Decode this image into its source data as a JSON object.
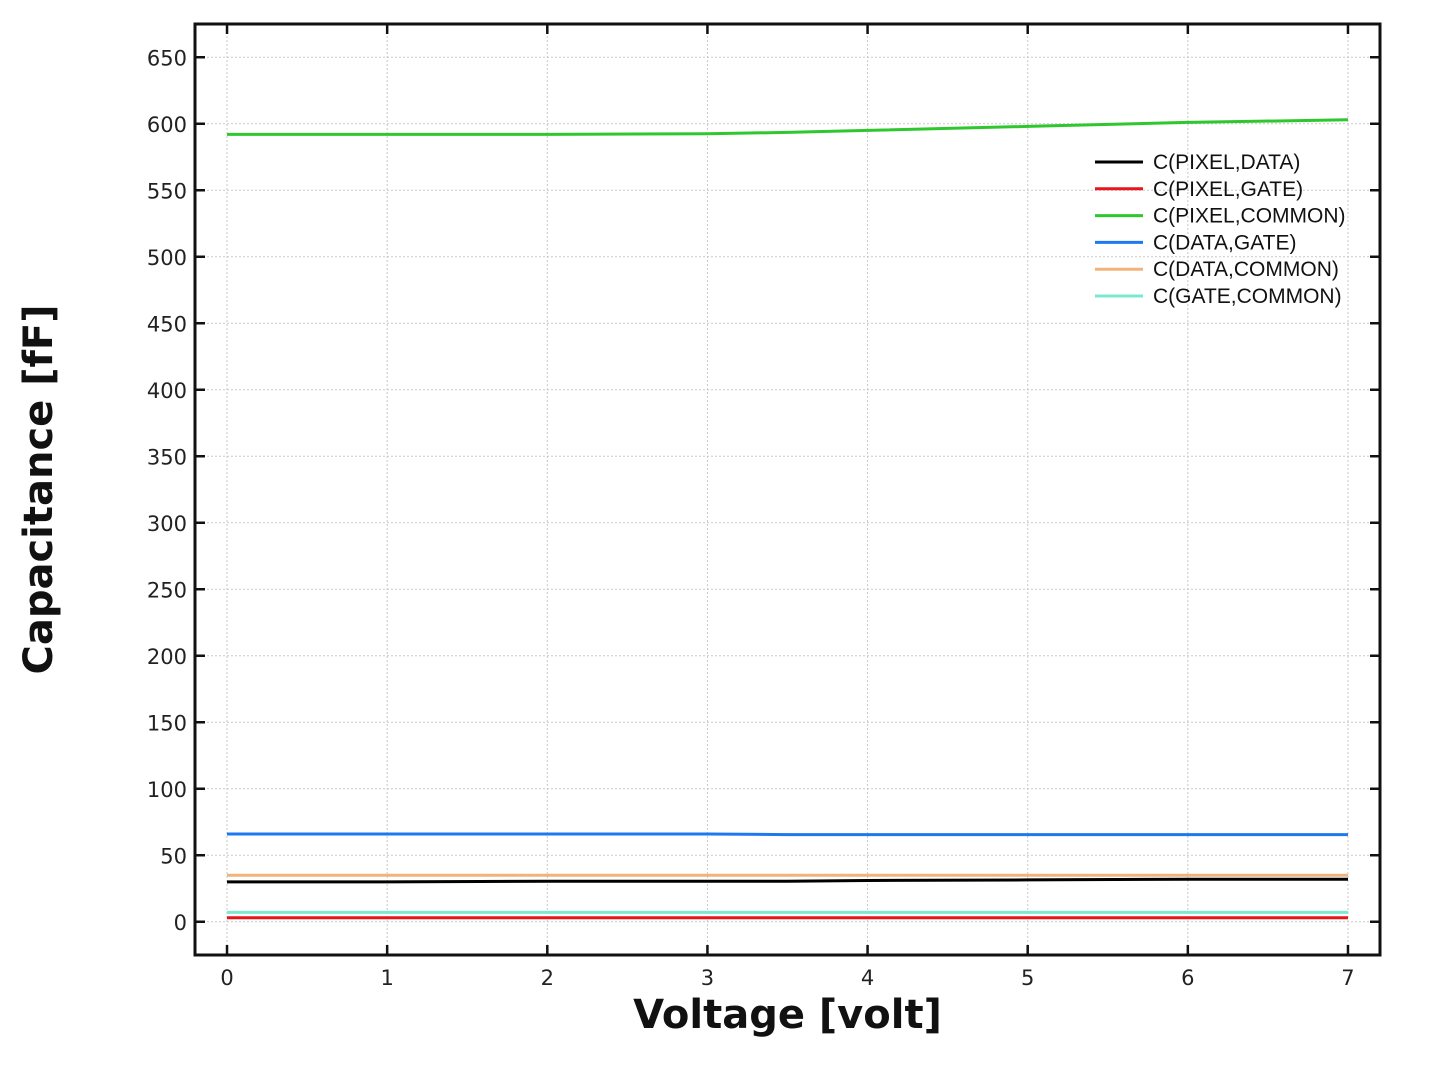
{
  "chart_data": {
    "type": "line",
    "title": "",
    "xlabel": "Voltage [volt]",
    "ylabel": "Capacitance [fF]",
    "xlim": [
      -0.2,
      7.2
    ],
    "ylim": [
      -25,
      675
    ],
    "x_ticks": [
      0,
      1,
      2,
      3,
      4,
      5,
      6,
      7
    ],
    "y_ticks": [
      0,
      50,
      100,
      150,
      200,
      250,
      300,
      350,
      400,
      450,
      500,
      550,
      600,
      650
    ],
    "grid": true,
    "legend_position": "top-right",
    "x": [
      0,
      1,
      2,
      3,
      3.5,
      4,
      5,
      6,
      7
    ],
    "series": [
      {
        "name": "C(PIXEL,DATA)",
        "color": "#000000",
        "values": [
          30,
          30,
          30.5,
          30.5,
          30.5,
          31,
          31.5,
          32,
          32
        ]
      },
      {
        "name": "C(PIXEL,GATE)",
        "color": "#e8141c",
        "values": [
          3,
          3,
          3,
          3,
          3,
          3,
          3,
          3,
          3
        ]
      },
      {
        "name": "C(PIXEL,COMMON)",
        "color": "#2ec72e",
        "values": [
          592,
          592,
          592,
          592.5,
          593.5,
          595,
          598,
          601,
          603
        ]
      },
      {
        "name": "C(DATA,GATE)",
        "color": "#1e78f0",
        "values": [
          66,
          66,
          66,
          66,
          65.5,
          65.5,
          65.5,
          65.5,
          65.5
        ]
      },
      {
        "name": "C(DATA,COMMON)",
        "color": "#f2b27a",
        "values": [
          35,
          35,
          35,
          35,
          35,
          35,
          35,
          35,
          35
        ]
      },
      {
        "name": "C(GATE,COMMON)",
        "color": "#7de8d0",
        "values": [
          7,
          7,
          7,
          7,
          7,
          7,
          7,
          7,
          7
        ]
      }
    ]
  }
}
